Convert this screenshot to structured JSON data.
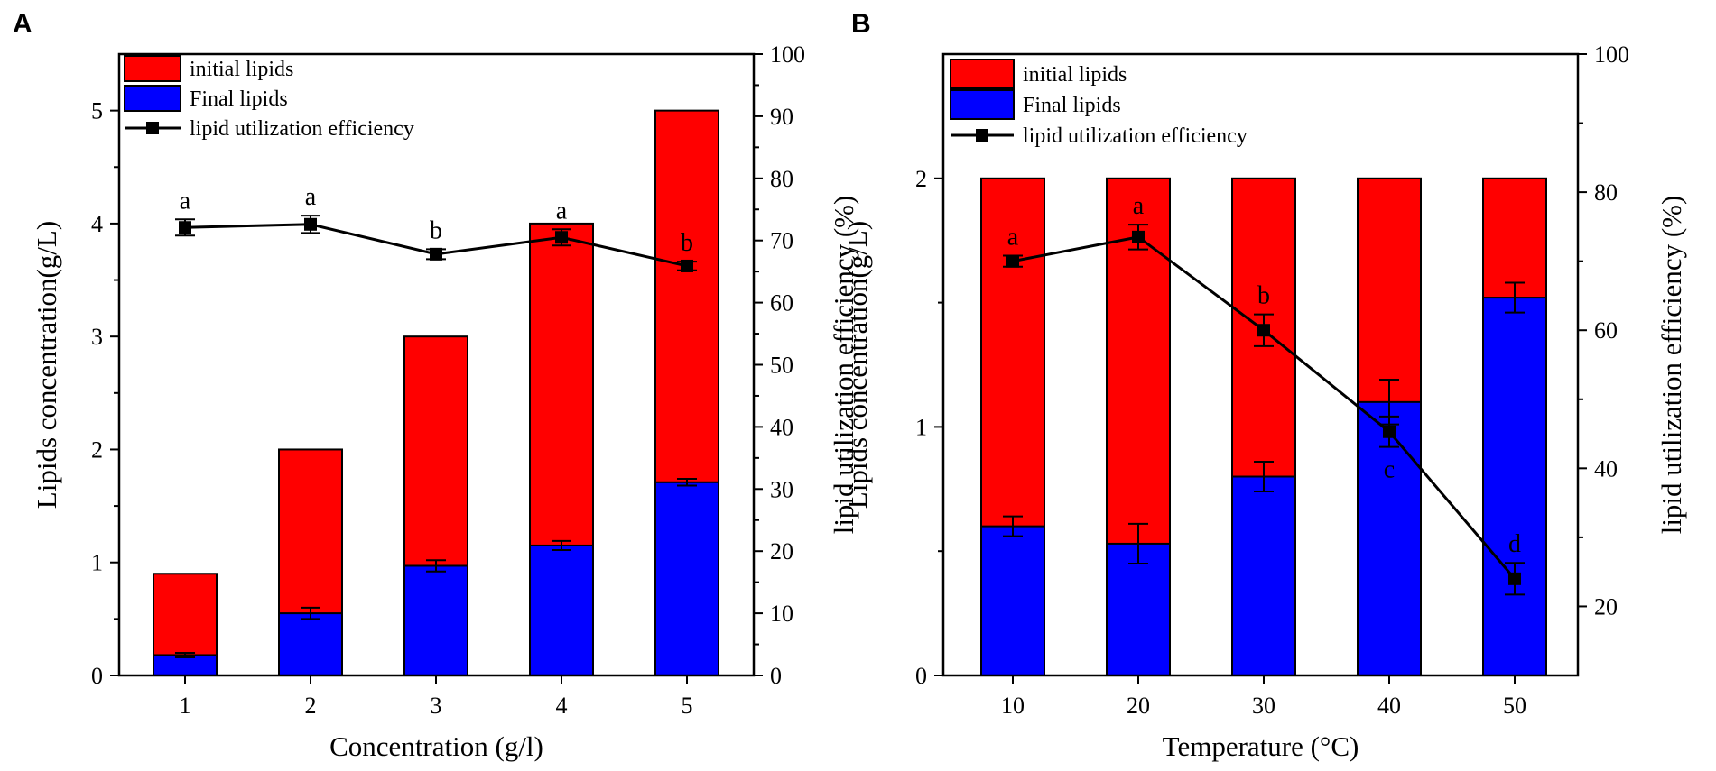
{
  "chart_data": [
    {
      "panel_label": "A",
      "type": "bar",
      "stacked": "overlaid",
      "categories": [
        "1",
        "2",
        "3",
        "4",
        "5"
      ],
      "xlabel": "Concentration (g/l)",
      "ylabel": "Lipids concentration(g/L)",
      "y2label": "lipid utilization efficiency (%)",
      "ylim": [
        0,
        5.5
      ],
      "y2lim": [
        0,
        100
      ],
      "yticks": [
        "0",
        "1",
        "2",
        "3",
        "4",
        "5"
      ],
      "y2ticks": [
        "0",
        "10",
        "20",
        "30",
        "40",
        "50",
        "60",
        "70",
        "80",
        "90",
        "100"
      ],
      "legend_position": "top-left",
      "series": [
        {
          "name": "initial lipids",
          "kind": "bar",
          "color": "#ff0000",
          "values": [
            0.9,
            2.0,
            3.0,
            4.0,
            5.0
          ]
        },
        {
          "name": "Final lipids",
          "kind": "bar",
          "color": "#0000ff",
          "values": [
            0.18,
            0.55,
            0.97,
            1.15,
            1.71
          ],
          "errors": [
            0.02,
            0.05,
            0.05,
            0.04,
            0.03
          ]
        },
        {
          "name": "lipid utilization efficiency",
          "kind": "line",
          "axis": "right",
          "color": "#000000",
          "values": [
            72.1,
            72.6,
            67.8,
            70.5,
            65.9
          ],
          "errors": [
            1.3,
            1.4,
            0.8,
            1.3,
            0.7
          ],
          "letters": [
            "a",
            "a",
            "b",
            "a",
            "b"
          ]
        }
      ]
    },
    {
      "panel_label": "B",
      "type": "bar",
      "stacked": "overlaid",
      "categories": [
        "10",
        "20",
        "30",
        "40",
        "50"
      ],
      "xlabel": "Temperature (°C)",
      "ylabel": "Lipids concentration(g/L)",
      "y2label": "lipid utilization efficiency (%)",
      "ylim": [
        0,
        2.5
      ],
      "y2lim": [
        10,
        100
      ],
      "yticks": [
        "0",
        "1",
        "2"
      ],
      "y2ticks": [
        "20",
        "40",
        "60",
        "80",
        "100"
      ],
      "legend_position": "top-left",
      "series": [
        {
          "name": "initial lipids",
          "kind": "bar",
          "color": "#ff0000",
          "values": [
            2.0,
            2.0,
            2.0,
            2.0,
            2.0
          ]
        },
        {
          "name": "Final lipids",
          "kind": "bar",
          "color": "#0000ff",
          "values": [
            0.6,
            0.53,
            0.8,
            1.1,
            1.52
          ],
          "errors": [
            0.04,
            0.08,
            0.06,
            0.09,
            0.06
          ]
        },
        {
          "name": "lipid utilization efficiency",
          "kind": "line",
          "axis": "right",
          "color": "#000000",
          "values": [
            70.0,
            73.5,
            60.0,
            45.3,
            24.0
          ],
          "errors": [
            0.8,
            1.8,
            2.3,
            2.2,
            2.3
          ],
          "letters": [
            "a",
            "a",
            "b",
            "c",
            "d"
          ]
        }
      ]
    }
  ]
}
